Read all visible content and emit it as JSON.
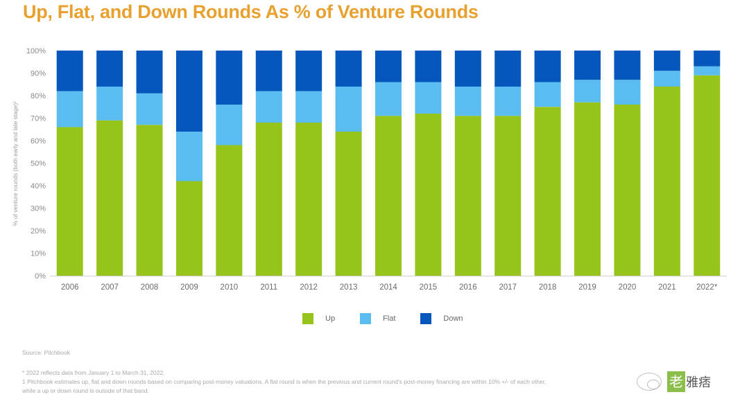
{
  "page": {
    "title": "Up, Flat, and Down Rounds As % of Venture Rounds",
    "source": "Source: Pitchbook",
    "notes": [
      "* 2022 reflects data from January 1 to March 31, 2022.",
      "1 Pitchbook estimates up, flat and down rounds based on comparing post-money valuations. A flat round is when the previous and current round's post-money financing are within 10% +/- of each other, while a up or down round is outside of that band."
    ],
    "watermark": {
      "icon": "wechat-icon",
      "boxed_text": "老",
      "text": "雅痞"
    }
  },
  "colors": {
    "up": "#97c41a",
    "flat": "#5bbdef",
    "down": "#0557bb",
    "title": "#e8a02e"
  },
  "chart_data": {
    "type": "bar",
    "stacked": true,
    "title": "Up, Flat, and Down Rounds As % of Venture Rounds",
    "xlabel": "",
    "ylabel": "% of venture rounds (both early and late stage)¹",
    "ylim": [
      0,
      100
    ],
    "yticks": [
      "0%",
      "10%",
      "20%",
      "30%",
      "40%",
      "50%",
      "60%",
      "70%",
      "80%",
      "90%",
      "100%"
    ],
    "grid": false,
    "legend_position": "bottom-center",
    "categories": [
      "2006",
      "2007",
      "2008",
      "2009",
      "2010",
      "2011",
      "2012",
      "2013",
      "2014",
      "2015",
      "2016",
      "2017",
      "2018",
      "2019",
      "2020",
      "2021",
      "2022*"
    ],
    "series": [
      {
        "name": "Up",
        "color": "#97c41a",
        "values": [
          66,
          69,
          67,
          42,
          58,
          68,
          68,
          64,
          71,
          72,
          71,
          71,
          75,
          77,
          76,
          84,
          89
        ]
      },
      {
        "name": "Flat",
        "color": "#5bbdef",
        "values": [
          16,
          15,
          14,
          22,
          18,
          14,
          14,
          20,
          15,
          14,
          13,
          13,
          11,
          10,
          11,
          7,
          4
        ]
      },
      {
        "name": "Down",
        "color": "#0557bb",
        "values": [
          18,
          16,
          19,
          36,
          24,
          18,
          18,
          16,
          14,
          14,
          16,
          16,
          14,
          13,
          13,
          9,
          7
        ]
      }
    ]
  }
}
